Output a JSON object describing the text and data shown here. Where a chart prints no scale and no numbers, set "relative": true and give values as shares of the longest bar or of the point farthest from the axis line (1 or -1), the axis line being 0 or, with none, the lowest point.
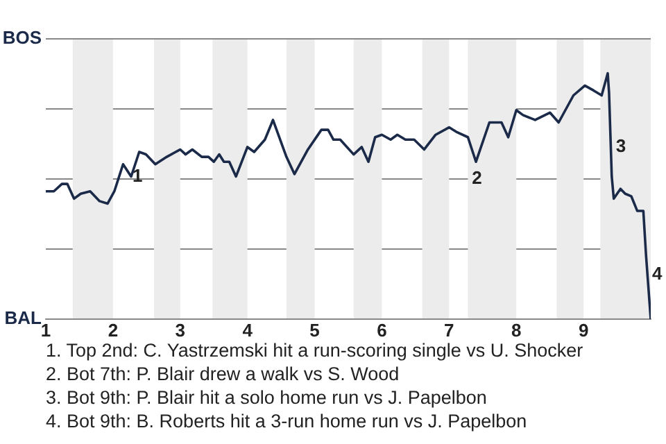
{
  "chart_data": {
    "type": "line",
    "relative": true,
    "xlim": [
      1,
      10
    ],
    "xticks": [
      1,
      2,
      3,
      4,
      5,
      6,
      7,
      8,
      9
    ],
    "grid": "y",
    "legend": false,
    "marker": "none",
    "line_style": "solid",
    "series": [
      {
        "color": "#1a2a48",
        "x": [
          1,
          1.12,
          1.24,
          1.32,
          1.42,
          1.52,
          1.66,
          1.8,
          1.92,
          2.02,
          2.15,
          2.27,
          2.39,
          2.49,
          2.63,
          2.8,
          3,
          3.08,
          3.18,
          3.32,
          3.42,
          3.5,
          3.58,
          3.65,
          3.73,
          3.83,
          4,
          4.1,
          4.26,
          4.38,
          4.58,
          4.7,
          4.9,
          5.1,
          5.2,
          5.28,
          5.38,
          5.58,
          5.7,
          5.8,
          5.9,
          6,
          6.13,
          6.23,
          6.35,
          6.48,
          6.63,
          6.8,
          7,
          7.12,
          7.28,
          7.4,
          7.6,
          7.78,
          7.88,
          8,
          8.1,
          8.28,
          8.5,
          8.63,
          8.85,
          9.02,
          9.15,
          9.27,
          9.36,
          9.38,
          9.42,
          9.45,
          9.55,
          9.62,
          9.71,
          9.8,
          9.89,
          9.93,
          10
        ],
        "values": [
          0.52,
          0.52,
          0.55,
          0.55,
          0.49,
          0.51,
          0.52,
          0.48,
          0.47,
          0.52,
          0.63,
          0.58,
          0.68,
          0.67,
          0.63,
          0.66,
          0.69,
          0.67,
          0.69,
          0.66,
          0.66,
          0.64,
          0.67,
          0.64,
          0.64,
          0.58,
          0.7,
          0.68,
          0.73,
          0.81,
          0.66,
          0.59,
          0.69,
          0.77,
          0.77,
          0.73,
          0.73,
          0.67,
          0.7,
          0.64,
          0.74,
          0.75,
          0.73,
          0.75,
          0.73,
          0.73,
          0.69,
          0.75,
          0.78,
          0.76,
          0.74,
          0.64,
          0.8,
          0.8,
          0.74,
          0.85,
          0.83,
          0.81,
          0.84,
          0.8,
          0.91,
          0.95,
          0.93,
          0.91,
          1,
          0.92,
          0.58,
          0.49,
          0.53,
          0.51,
          0.5,
          0.44,
          0.44,
          0.26,
          0
        ]
      }
    ],
    "bands": [
      {
        "axis": "x",
        "from": 1.4,
        "to": 2,
        "color": "#ececec"
      },
      {
        "axis": "x",
        "from": 2.61,
        "to": 3,
        "color": "#ececec"
      },
      {
        "axis": "x",
        "from": 3.48,
        "to": 4,
        "color": "#ececec"
      },
      {
        "axis": "x",
        "from": 4.58,
        "to": 5,
        "color": "#ececec"
      },
      {
        "axis": "x",
        "from": 5.58,
        "to": 6,
        "color": "#ececec"
      },
      {
        "axis": "x",
        "from": 6.6,
        "to": 7,
        "color": "#ececec"
      },
      {
        "axis": "x",
        "from": 7.28,
        "to": 8,
        "color": "#ececec"
      },
      {
        "axis": "x",
        "from": 8.6,
        "to": 9,
        "color": "#ececec"
      },
      {
        "axis": "x",
        "from": 9.25,
        "to": 10,
        "color": "#ececec"
      }
    ],
    "ref_lines": [
      {
        "axis": "y",
        "value": 1.14,
        "label": "BOS",
        "color": "#888888"
      },
      {
        "axis": "y",
        "value": 0,
        "label": "BAL",
        "color": "#888888"
      }
    ],
    "annotations": [
      {
        "text": "1",
        "x": 2.27,
        "y": 0.58
      },
      {
        "text": "2",
        "x": 7.32,
        "y": 0.57
      },
      {
        "text": "3",
        "x": 9.46,
        "y": 0.7
      },
      {
        "text": "4",
        "x": 10,
        "y": 0.18
      },
      "1. Top 2nd: C. Yastrzemski hit a run-scoring single vs U. Shocker",
      "2. Bot 7th: P. Blair drew a walk vs S. Wood",
      "3. Bot 9th: P. Blair hit a solo home run vs J. Papelbon",
      "4. Bot 9th: B. Roberts hit a 3-run home run vs J. Papelbon"
    ]
  }
}
